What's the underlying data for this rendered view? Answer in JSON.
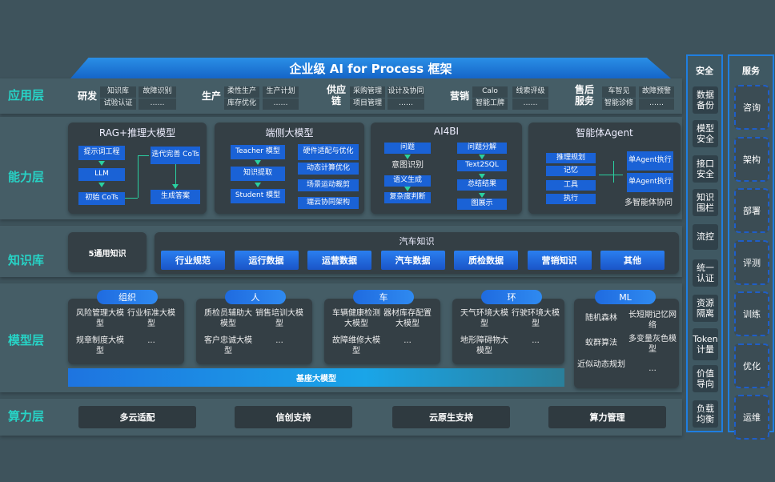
{
  "title": "企业级 AI for Process 框架",
  "layers": {
    "app": "应用层",
    "capability": "能力层",
    "knowledge": "知识库",
    "model": "模型层",
    "compute": "算力层"
  },
  "app_groups": [
    {
      "label": "研发",
      "items": [
        "知识库",
        "故障识别",
        "试验认证",
        "……"
      ]
    },
    {
      "label": "生产",
      "items": [
        "柔性生产",
        "生产计划",
        "库存优化",
        "……"
      ]
    },
    {
      "label": "供应链",
      "items": [
        "采购管理",
        "设计及协同",
        "项目管理",
        "……"
      ]
    },
    {
      "label": "营销",
      "items": [
        "Calo",
        "线索评级",
        "智能工牌",
        "……"
      ]
    },
    {
      "label": "售后服务",
      "items": [
        "车智见",
        "故障预警",
        "智能诊修",
        "……"
      ]
    }
  ],
  "capabilities": [
    {
      "title": "RAG+推理大模型",
      "boxes": [
        "提示词工程",
        "LLM",
        "初始 CoTs",
        "迭代完善 CoTs",
        "生成答案"
      ]
    },
    {
      "title": "端侧大模型",
      "boxes": [
        "Teacher 模型",
        "知识提取",
        "Student 模型",
        "硬件适配与优化",
        "动态计算优化",
        "场景运动裁剪",
        "端云协同架构"
      ]
    },
    {
      "title": "AI4BI",
      "boxes": [
        "问题",
        "语义生成",
        "复杂度判断",
        "问题分解",
        "Text2SQL",
        "总结结果",
        "图展示"
      ],
      "texts": [
        "意图识别"
      ]
    },
    {
      "title": "智能体Agent",
      "boxes": [
        "推理规划",
        "记忆",
        "工具",
        "执行",
        "单Agent执行",
        "单Agent执行"
      ],
      "texts": [
        "多智能体协同"
      ]
    }
  ],
  "knowledge": {
    "general": "5通用知识",
    "auto_title": "汽车知识",
    "items": [
      "行业规范",
      "运行数据",
      "运营数据",
      "汽车数据",
      "质检数据",
      "营销知识",
      "其他"
    ]
  },
  "models": [
    {
      "tag": "组织",
      "items": [
        "风险管理大模型",
        "行业标准大模型",
        "规章制度大模型",
        "..."
      ]
    },
    {
      "tag": "人",
      "items": [
        "质检员辅助大模型",
        "销售培训大模型",
        "客户忠诚大模型",
        "..."
      ]
    },
    {
      "tag": "车",
      "items": [
        "车辆健康检测大模型",
        "器材库存配置大模型",
        "故障维修大模型",
        "..."
      ]
    },
    {
      "tag": "环",
      "items": [
        "天气环境大模型",
        "行驶环境大模型",
        "地形障碍物大模型",
        "..."
      ]
    },
    {
      "tag": "ML",
      "items": [
        "随机森林",
        "长短期记忆网络",
        "蚁群算法",
        "多变量灰色模型",
        "近似动态规划",
        "..."
      ]
    }
  ],
  "base_model": "基座大模型",
  "compute": [
    "多云适配",
    "信创支持",
    "云原生支持",
    "算力管理"
  ],
  "security": {
    "title": "安全",
    "items": [
      "数据备份",
      "模型安全",
      "接口安全",
      "知识围栏",
      "流控",
      "统一认证",
      "资源隔离",
      "Token计量",
      "价值导向",
      "负载均衡"
    ]
  },
  "service": {
    "title": "服务",
    "items": [
      "咨询",
      "架构",
      "部署",
      "评测",
      "训练",
      "优化",
      "运维"
    ]
  },
  "colors": {
    "accent": "#1a62d6",
    "layer_label": "#27d3c6",
    "background": "#3e535c"
  }
}
